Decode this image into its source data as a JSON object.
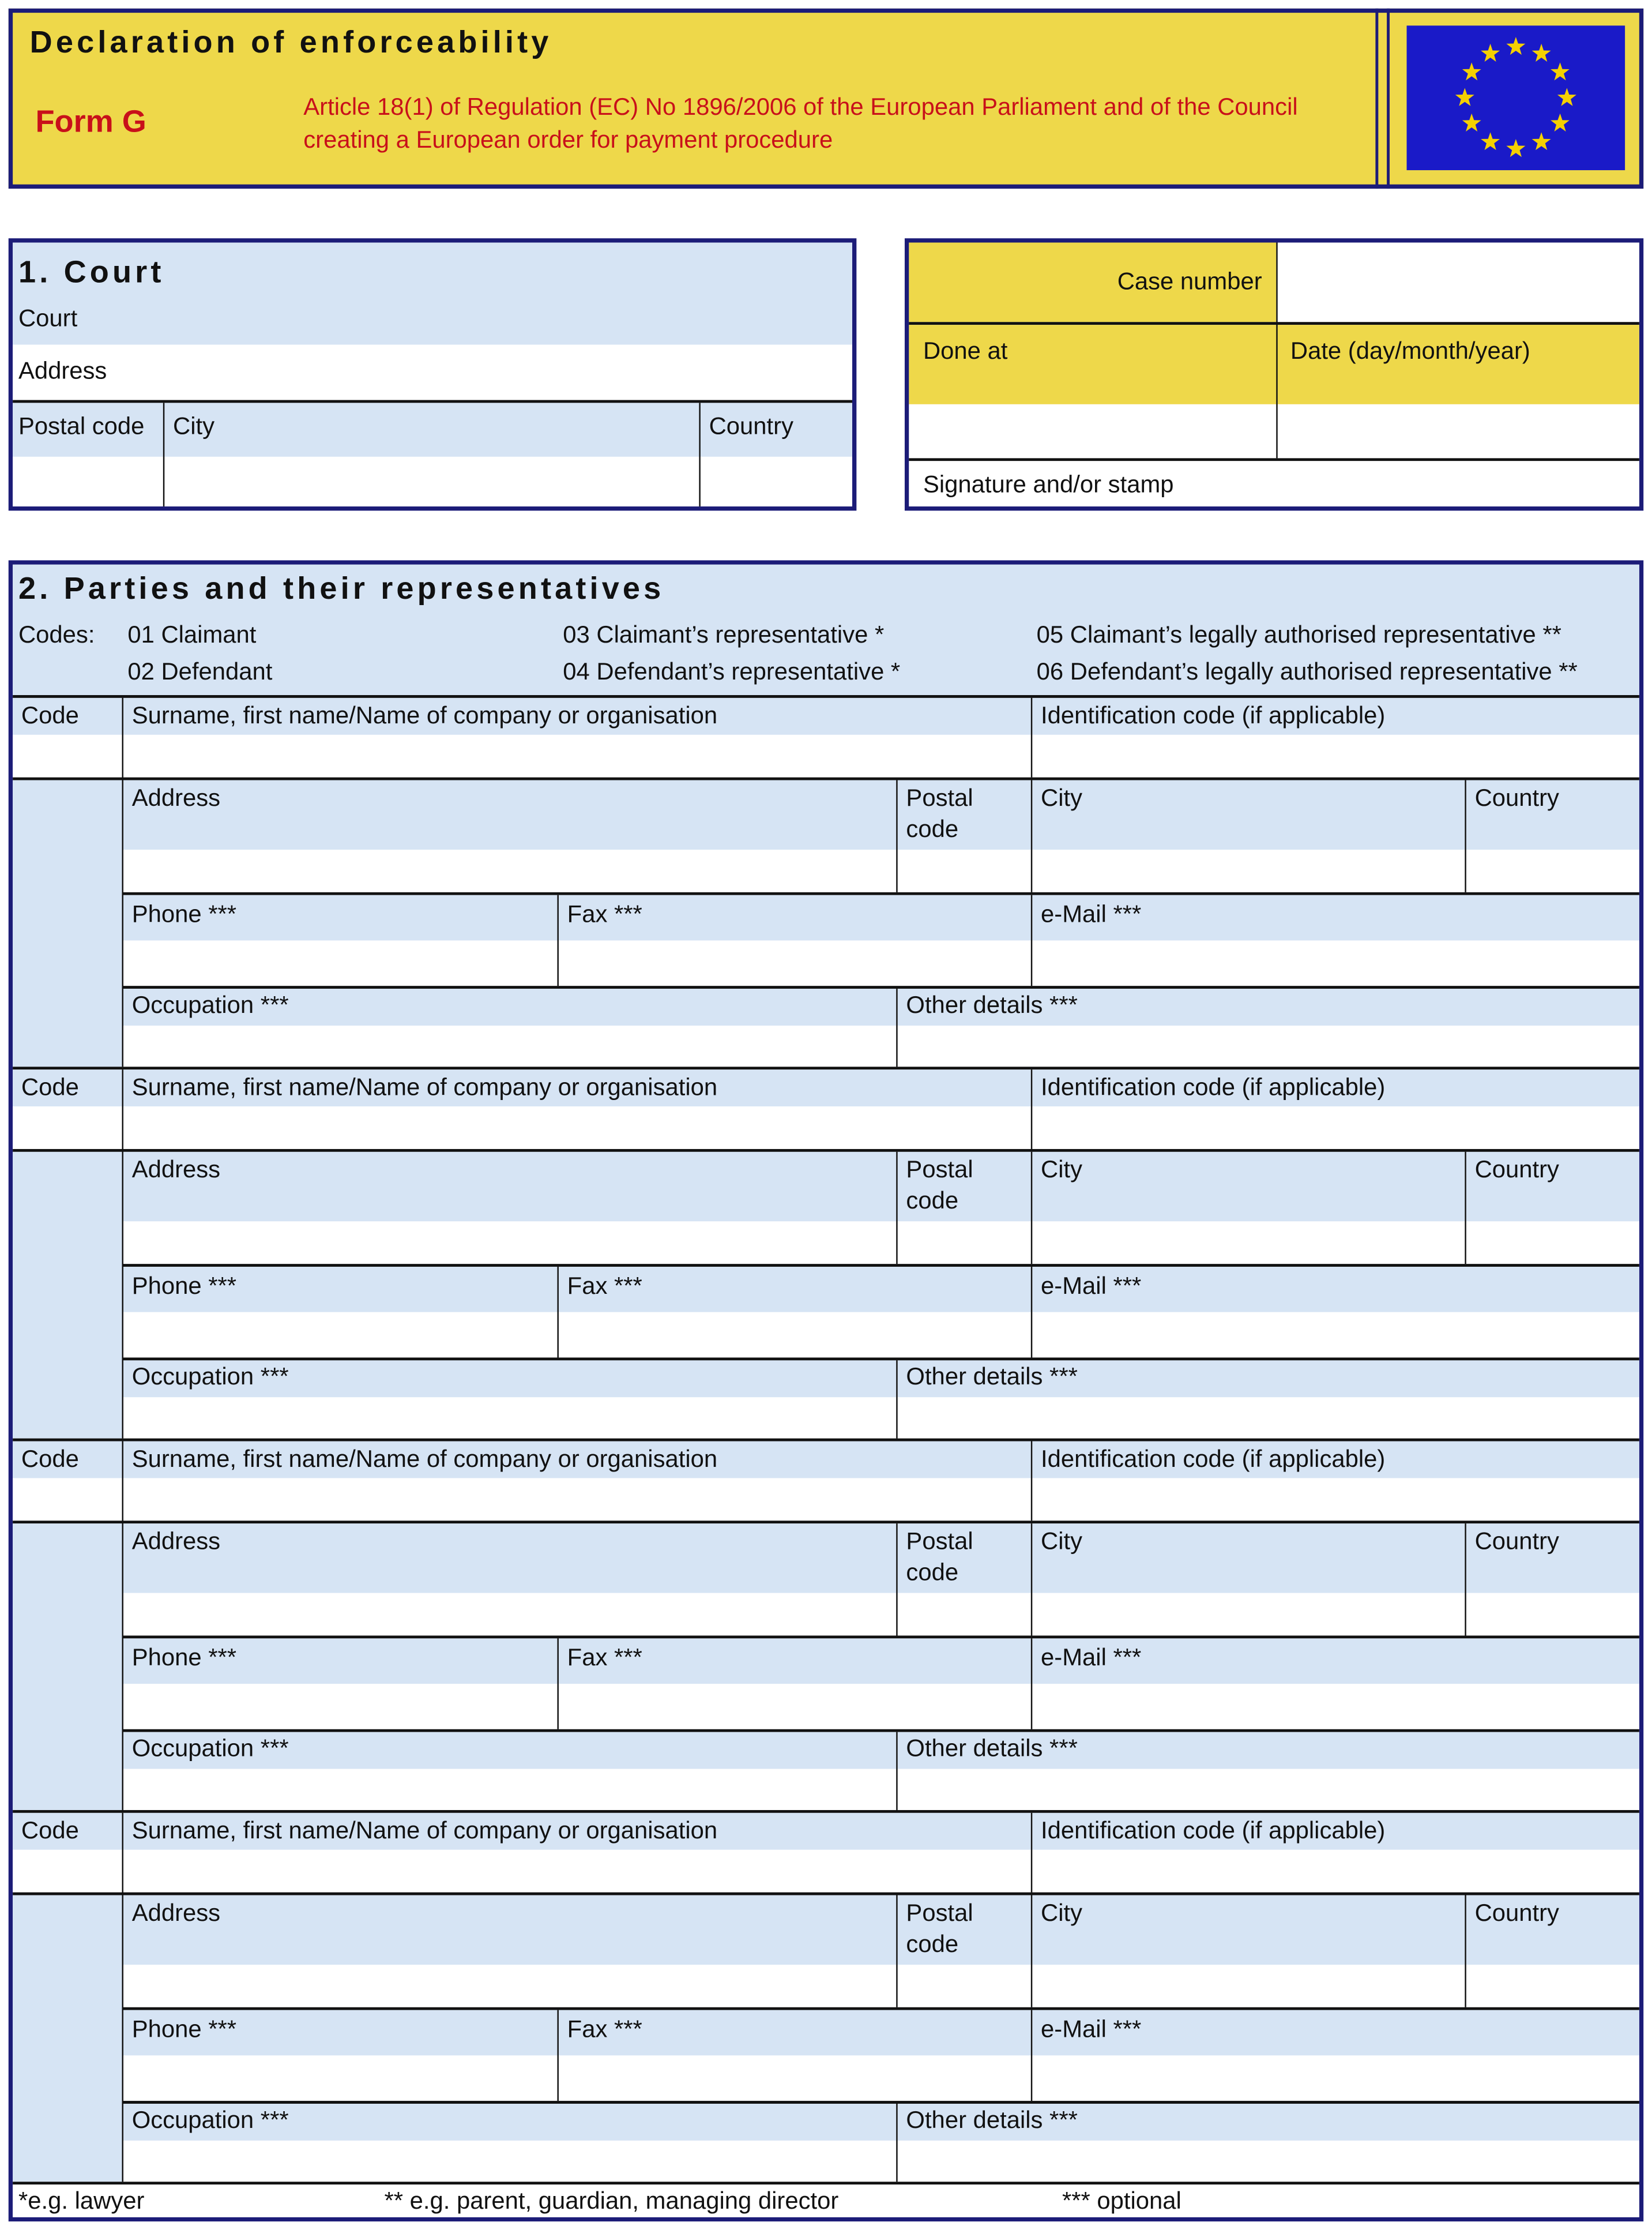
{
  "header": {
    "title": "Declaration of enforceability",
    "form": "Form G",
    "regulation_line1": "Article 18(1) of Regulation (EC) No 1896/2006 of the European Parliament and of the Council",
    "regulation_line2": "creating a European order for payment procedure",
    "logo": "eu-flag"
  },
  "court": {
    "title": "1. Court",
    "court": "Court",
    "address": "Address",
    "postal_code": "Postal code",
    "city": "City",
    "country": "Country"
  },
  "case": {
    "case_number": "Case number",
    "done_at": "Done at",
    "date": "Date (day/month/year)",
    "signature": "Signature and/or stamp"
  },
  "parties": {
    "title": "2. Parties and their representatives",
    "codes_label": "Codes:",
    "codes": [
      "01 Claimant",
      "02 Defendant",
      "03 Claimant’s representative *",
      "04 Defendant’s representative *",
      "05 Claimant’s legally authorised representative **",
      "06 Defendant’s legally authorised representative **"
    ],
    "labels": {
      "code": "Code",
      "name": "Surname, first name/Name of company or organisation",
      "id": "Identification code (if applicable)",
      "address": "Address",
      "postal": "Postal code",
      "city": "City",
      "country": "Country",
      "phone": "Phone ***",
      "fax": "Fax ***",
      "email": "e-Mail ***",
      "occupation": "Occupation ***",
      "other": "Other details ***"
    },
    "block_count": 4
  },
  "footnotes": [
    "*e.g. lawyer",
    "** e.g. parent, guardian, managing director",
    "*** optional"
  ],
  "colors": {
    "yellow": "#eed84a",
    "light_blue": "#d6e4f4",
    "navy": "#1c1c78",
    "red": "#c8101a",
    "flag_blue": "#1a1ac8",
    "star": "#f5d000"
  }
}
